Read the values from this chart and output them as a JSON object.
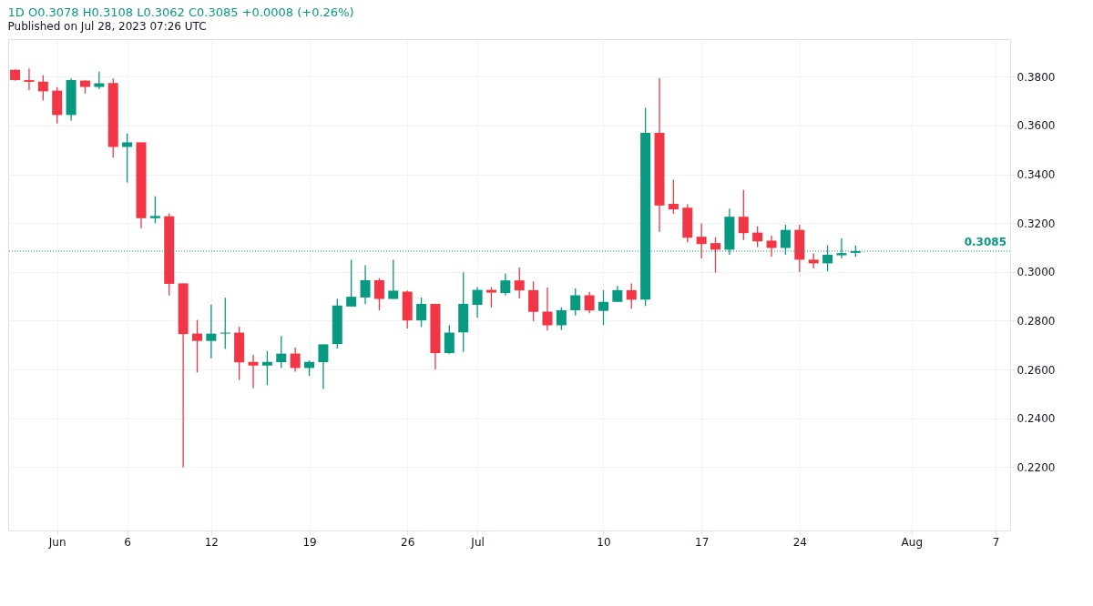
{
  "chart_data": {
    "type": "candlestick",
    "title": "1D  O0.3078  H0.3108  L0.3062  C0.3085  +0.0008 (+0.26%)",
    "annotations": [
      "Published on Jul 28, 2023 07:26 UTC"
    ],
    "x": [
      "2023-05-29",
      "2023-05-30",
      "2023-05-31",
      "2023-06-01",
      "2023-06-02",
      "2023-06-03",
      "2023-06-04",
      "2023-06-05",
      "2023-06-06",
      "2023-06-07",
      "2023-06-08",
      "2023-06-09",
      "2023-06-10",
      "2023-06-11",
      "2023-06-12",
      "2023-06-13",
      "2023-06-14",
      "2023-06-15",
      "2023-06-16",
      "2023-06-17",
      "2023-06-18",
      "2023-06-19",
      "2023-06-20",
      "2023-06-21",
      "2023-06-22",
      "2023-06-23",
      "2023-06-24",
      "2023-06-25",
      "2023-06-26",
      "2023-06-27",
      "2023-06-28",
      "2023-06-29",
      "2023-06-30",
      "2023-07-01",
      "2023-07-02",
      "2023-07-03",
      "2023-07-04",
      "2023-07-05",
      "2023-07-06",
      "2023-07-07",
      "2023-07-08",
      "2023-07-09",
      "2023-07-10",
      "2023-07-11",
      "2023-07-12",
      "2023-07-13",
      "2023-07-14",
      "2023-07-15",
      "2023-07-16",
      "2023-07-17",
      "2023-07-18",
      "2023-07-19",
      "2023-07-20",
      "2023-07-21",
      "2023-07-22",
      "2023-07-23",
      "2023-07-24",
      "2023-07-25",
      "2023-07-26",
      "2023-07-27",
      "2023-07-28"
    ],
    "ohlc": [
      [
        0.3828,
        0.383,
        0.3784,
        0.3786
      ],
      [
        0.3786,
        0.3834,
        0.3745,
        0.3779
      ],
      [
        0.378,
        0.3807,
        0.3702,
        0.374
      ],
      [
        0.3743,
        0.3757,
        0.3608,
        0.3643
      ],
      [
        0.3643,
        0.3793,
        0.362,
        0.3786
      ],
      [
        0.3784,
        0.3786,
        0.3731,
        0.3758
      ],
      [
        0.3758,
        0.3821,
        0.3749,
        0.3773
      ],
      [
        0.3774,
        0.3793,
        0.3468,
        0.3512
      ],
      [
        0.3512,
        0.3567,
        0.3366,
        0.3531
      ],
      [
        0.3531,
        0.3531,
        0.3178,
        0.322
      ],
      [
        0.322,
        0.331,
        0.3199,
        0.3229
      ],
      [
        0.3228,
        0.324,
        0.2903,
        0.2951
      ],
      [
        0.2953,
        0.2953,
        0.2198,
        0.2745
      ],
      [
        0.2747,
        0.2803,
        0.2588,
        0.2717
      ],
      [
        0.2717,
        0.2866,
        0.2646,
        0.2747
      ],
      [
        0.2747,
        0.2894,
        0.2684,
        0.2751
      ],
      [
        0.2751,
        0.2775,
        0.2557,
        0.2629
      ],
      [
        0.2631,
        0.266,
        0.2524,
        0.2616
      ],
      [
        0.2616,
        0.2676,
        0.2536,
        0.2631
      ],
      [
        0.263,
        0.2737,
        0.2606,
        0.2665
      ],
      [
        0.2665,
        0.269,
        0.2591,
        0.2606
      ],
      [
        0.2606,
        0.2637,
        0.2573,
        0.2631
      ],
      [
        0.263,
        0.2703,
        0.252,
        0.2703
      ],
      [
        0.2704,
        0.2889,
        0.2686,
        0.2862
      ],
      [
        0.2858,
        0.305,
        0.2858,
        0.2898
      ],
      [
        0.2895,
        0.3027,
        0.2868,
        0.2966
      ],
      [
        0.2966,
        0.2974,
        0.2842,
        0.2889
      ],
      [
        0.2889,
        0.305,
        0.2889,
        0.2923
      ],
      [
        0.2919,
        0.2924,
        0.2768,
        0.2801
      ],
      [
        0.2801,
        0.2895,
        0.2774,
        0.2869
      ],
      [
        0.2869,
        0.2869,
        0.26,
        0.2667
      ],
      [
        0.2667,
        0.2781,
        0.2664,
        0.2751
      ],
      [
        0.2752,
        0.2998,
        0.2672,
        0.2869
      ],
      [
        0.2865,
        0.2938,
        0.2812,
        0.2926
      ],
      [
        0.2926,
        0.2938,
        0.2854,
        0.2915
      ],
      [
        0.2913,
        0.2994,
        0.2904,
        0.2965
      ],
      [
        0.2965,
        0.3018,
        0.2891,
        0.2924
      ],
      [
        0.2925,
        0.2961,
        0.2798,
        0.2836
      ],
      [
        0.2837,
        0.2936,
        0.276,
        0.2781
      ],
      [
        0.2781,
        0.2855,
        0.2762,
        0.2843
      ],
      [
        0.2843,
        0.2932,
        0.2821,
        0.2904
      ],
      [
        0.2904,
        0.2918,
        0.283,
        0.2842
      ],
      [
        0.284,
        0.2925,
        0.2782,
        0.2877
      ],
      [
        0.2877,
        0.2942,
        0.2877,
        0.2925
      ],
      [
        0.2925,
        0.2953,
        0.2849,
        0.2886
      ],
      [
        0.2886,
        0.3672,
        0.286,
        0.357
      ],
      [
        0.357,
        0.3795,
        0.3164,
        0.3272
      ],
      [
        0.3279,
        0.3378,
        0.3238,
        0.3256
      ],
      [
        0.3263,
        0.3277,
        0.3121,
        0.314
      ],
      [
        0.3144,
        0.3199,
        0.3055,
        0.3114
      ],
      [
        0.3118,
        0.3142,
        0.2997,
        0.3091
      ],
      [
        0.3091,
        0.3259,
        0.307,
        0.3226
      ],
      [
        0.3226,
        0.3336,
        0.3131,
        0.3159
      ],
      [
        0.3161,
        0.3187,
        0.3101,
        0.3125
      ],
      [
        0.3128,
        0.3148,
        0.3063,
        0.3098
      ],
      [
        0.3098,
        0.3193,
        0.307,
        0.3172
      ],
      [
        0.3172,
        0.3193,
        0.2999,
        0.305
      ],
      [
        0.305,
        0.3076,
        0.3014,
        0.3035
      ],
      [
        0.3035,
        0.3109,
        0.3002,
        0.307
      ],
      [
        0.3068,
        0.3137,
        0.3055,
        0.3077
      ],
      [
        0.3078,
        0.3108,
        0.3062,
        0.3085
      ]
    ],
    "colors": [
      "#f23645",
      "#f23645",
      "#f23645",
      "#f23645",
      "#089981",
      "#f23645",
      "#089981",
      "#f23645",
      "#089981",
      "#f23645",
      "#089981",
      "#f23645",
      "#f23645",
      "#f23645",
      "#089981",
      "#089981",
      "#f23645",
      "#f23645",
      "#089981",
      "#089981",
      "#f23645",
      "#089981",
      "#089981",
      "#089981",
      "#089981",
      "#089981",
      "#f23645",
      "#089981",
      "#f23645",
      "#089981",
      "#f23645",
      "#089981",
      "#089981",
      "#089981",
      "#f23645",
      "#089981",
      "#f23645",
      "#f23645",
      "#f23645",
      "#089981",
      "#089981",
      "#f23645",
      "#089981",
      "#089981",
      "#f23645",
      "#089981",
      "#f23645",
      "#f23645",
      "#f23645",
      "#f23645",
      "#f23645",
      "#089981",
      "#f23645",
      "#f23645",
      "#f23645",
      "#089981",
      "#f23645",
      "#f23645",
      "#089981",
      "#089981",
      "#089981"
    ],
    "xlim": [
      "2023-05-28T20:00",
      "2023-08-07T17:00"
    ],
    "xticks": [
      {
        "value": "2023-06-01",
        "label": "Jun"
      },
      {
        "value": "2023-06-06",
        "label": "6"
      },
      {
        "value": "2023-06-12",
        "label": "12"
      },
      {
        "value": "2023-06-19",
        "label": "19"
      },
      {
        "value": "2023-06-26",
        "label": "26"
      },
      {
        "value": "2023-07-01",
        "label": "Jul"
      },
      {
        "value": "2023-07-10",
        "label": "10"
      },
      {
        "value": "2023-07-17",
        "label": "17"
      },
      {
        "value": "2023-07-24",
        "label": "24"
      },
      {
        "value": "2023-08-01",
        "label": "Aug"
      },
      {
        "value": "2023-08-07",
        "label": "7"
      }
    ],
    "ylim": [
      0.194,
      0.3954
    ],
    "yticks": [
      {
        "value": 0.22,
        "label": "0.2200"
      },
      {
        "value": 0.24,
        "label": "0.2400"
      },
      {
        "value": 0.26,
        "label": "0.2600"
      },
      {
        "value": 0.28,
        "label": "0.2800"
      },
      {
        "value": 0.3,
        "label": "0.3000"
      },
      {
        "value": 0.32,
        "label": "0.3200"
      },
      {
        "value": 0.34,
        "label": "0.3400"
      },
      {
        "value": 0.36,
        "label": "0.3600"
      },
      {
        "value": 0.38,
        "label": "0.3800"
      }
    ],
    "ref_lines": [
      {
        "axis": "y",
        "value": 0.3085,
        "label": "0.3085",
        "color": "#089981",
        "line_style": "dotted"
      }
    ],
    "grid": true,
    "legend": false
  }
}
